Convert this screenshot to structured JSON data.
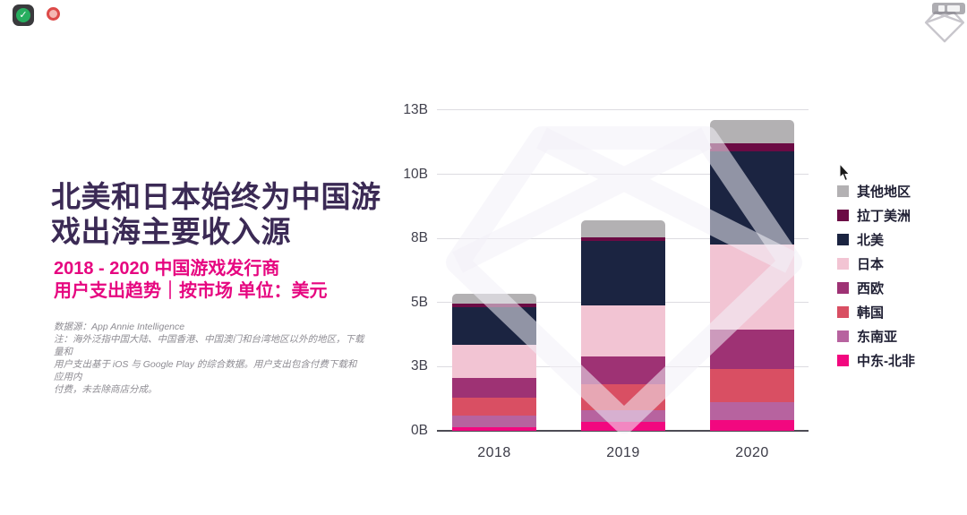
{
  "headline": {
    "text": "北美和日本始终为中国游\n戏出海主要收入源",
    "color": "#3b2a55"
  },
  "subtitle": {
    "text": "2018 - 2020 中国游戏发行商\n用户支出趋势｜按市场 单位：美元",
    "color": "#e60680"
  },
  "footnote": {
    "text": "数据源：App Annie Intelligence\n注：海外泛指中国大陆、中国香港、中国澳门和台湾地区以外的地区，下载量和\n用户支出基于 iOS 与 Google Play 的综合数据。用户支出包含付费下载和应用内\n付费，未去除商店分成。"
  },
  "chart_data": {
    "type": "bar",
    "stacked": true,
    "title": "北美和日本始终为中国游戏出海主要收入源",
    "subtitle": "2018 - 2020 中国游戏发行商用户支出趋势｜按市场 单位：美元",
    "categories": [
      "2018",
      "2019",
      "2020"
    ],
    "unit": "B (十亿美元)",
    "series_bottom_to_top": [
      {
        "name": "中东-北非",
        "color": "#f2087f",
        "values": [
          0.15,
          0.35,
          0.4
        ]
      },
      {
        "name": "东南亚",
        "color": "#b7639f",
        "values": [
          0.45,
          0.45,
          0.7
        ]
      },
      {
        "name": "韩国",
        "color": "#d94f63",
        "values": [
          0.7,
          1.0,
          1.3
        ]
      },
      {
        "name": "西欧",
        "color": "#9e3274",
        "values": [
          0.75,
          1.1,
          1.55
        ]
      },
      {
        "name": "日本",
        "color": "#f2c4d3",
        "values": [
          1.3,
          2.0,
          3.3
        ]
      },
      {
        "name": "北美",
        "color": "#1b2441",
        "values": [
          1.45,
          2.5,
          3.65
        ]
      },
      {
        "name": "拉丁美洲",
        "color": "#6b0b44",
        "values": [
          0.15,
          0.15,
          0.3
        ]
      },
      {
        "name": "其他地区",
        "color": "#b3b1b3",
        "values": [
          0.4,
          0.65,
          0.9
        ]
      }
    ],
    "totals": [
      5.35,
      8.2,
      12.1
    ],
    "yticks": [
      {
        "label": "0B",
        "value": 0
      },
      {
        "label": "3B",
        "value": 2.5
      },
      {
        "label": "5B",
        "value": 5
      },
      {
        "label": "8B",
        "value": 7.5
      },
      {
        "label": "10B",
        "value": 10
      },
      {
        "label": "13B",
        "value": 12.5
      }
    ],
    "ylim": [
      0,
      12.5
    ],
    "grid": "horizontal",
    "legend_position": "right",
    "legend_order_top_to_bottom": [
      "其他地区",
      "拉丁美洲",
      "北美",
      "日本",
      "西欧",
      "韩国",
      "东南亚",
      "中东-北非"
    ]
  },
  "watermark": {
    "name": "App Annie 钻石水印",
    "stroke": "rgba(242,240,247,0.55)"
  },
  "logo": {
    "name": "App Annie 钻石标志",
    "stroke": "#c8c6cc"
  }
}
